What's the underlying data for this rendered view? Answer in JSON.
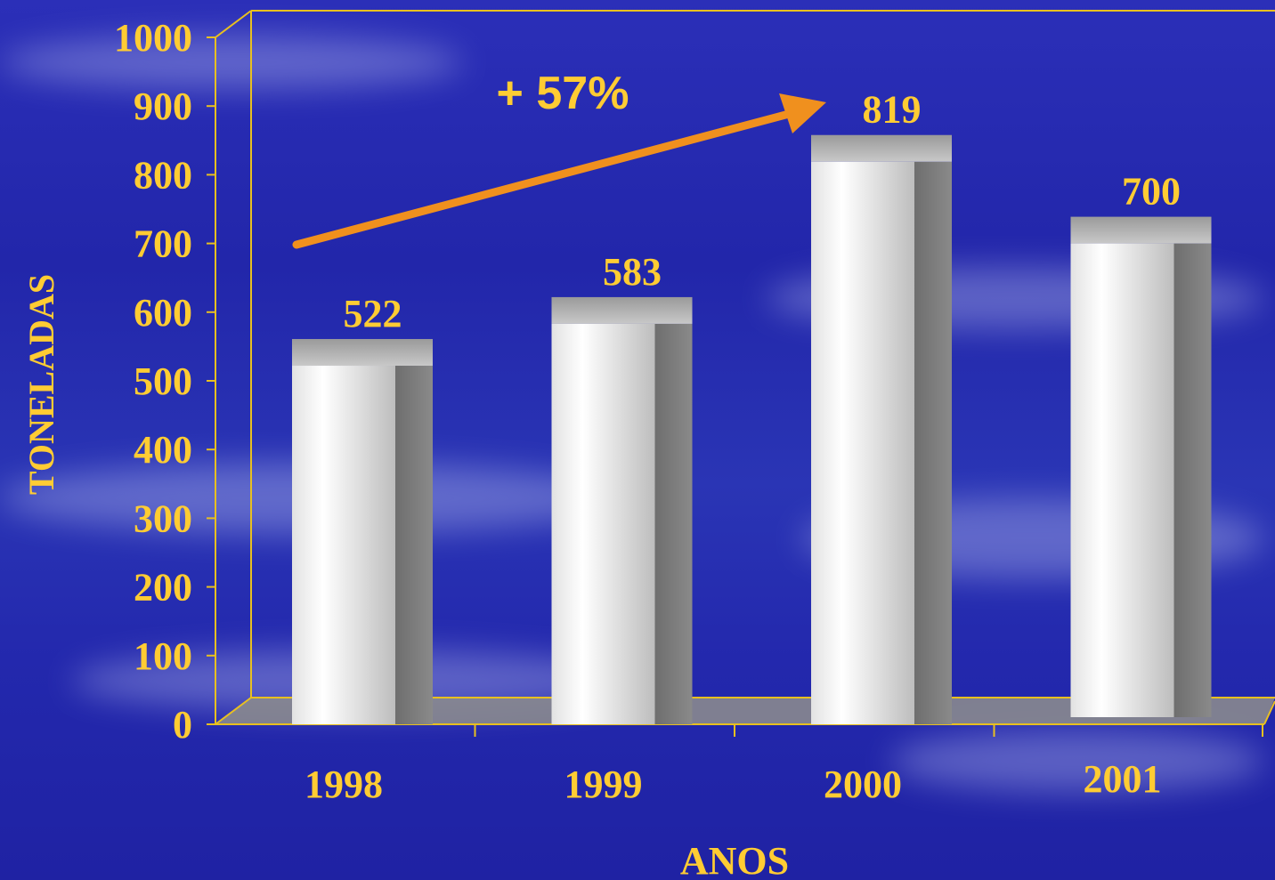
{
  "colors": {
    "accent": "#ffcc33",
    "arrow": "#f0901e",
    "axis": "#e8c020",
    "bar_face": "#f4f4f4",
    "bar_side": "#7a7a7a",
    "bar_top": "#b4b4b4"
  },
  "chart_data": {
    "type": "bar",
    "title": "",
    "xlabel": "ANOS",
    "ylabel": "TONELADAS",
    "categories": [
      "1998",
      "1999",
      "2000",
      "2001"
    ],
    "values": [
      522,
      583,
      819,
      700
    ],
    "ylim": [
      0,
      1000
    ],
    "yticks": [
      "0",
      "100",
      "200",
      "300",
      "400",
      "500",
      "600",
      "700",
      "800",
      "900",
      "1000"
    ],
    "data_labels": [
      "522",
      "583",
      "819",
      "700"
    ],
    "annotation": "+ 57%",
    "grid": false,
    "legend": "none"
  }
}
